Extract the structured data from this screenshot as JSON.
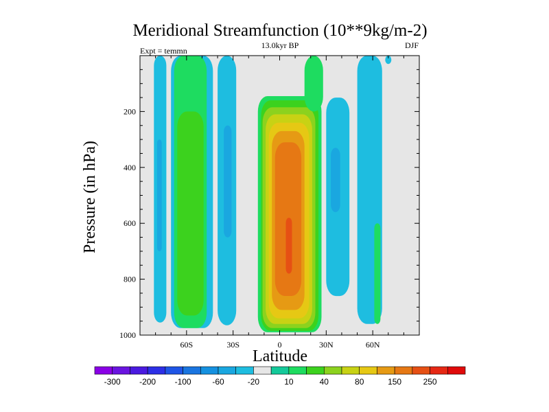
{
  "chart_data": {
    "type": "contour",
    "title": "Meridional Streamfunction (10**9kg/m-2)",
    "subtitle": "13.0kyr BP",
    "left_label": "Expt = temmn",
    "right_label": "DJF",
    "xlabel": "Latitude",
    "ylabel": "Pressure (in hPa)",
    "xlim": [
      -90,
      90
    ],
    "ylim": [
      1000,
      0
    ],
    "x_ticks": [
      {
        "value": -60,
        "label": "60S"
      },
      {
        "value": -30,
        "label": "30S"
      },
      {
        "value": 0,
        "label": "0"
      },
      {
        "value": 30,
        "label": "30N"
      },
      {
        "value": 60,
        "label": "60N"
      }
    ],
    "y_ticks": [
      {
        "value": 200,
        "label": "200"
      },
      {
        "value": 400,
        "label": "400"
      },
      {
        "value": 600,
        "label": "600"
      },
      {
        "value": 800,
        "label": "800"
      },
      {
        "value": 1000,
        "label": "1000"
      }
    ],
    "y_minor_ticks": [
      50,
      100,
      150,
      250,
      300,
      350,
      450,
      500,
      550,
      650,
      700,
      750,
      850,
      900,
      950
    ],
    "background_color": "#e6e6e6",
    "colorbar": {
      "colors": [
        "#8a00e6",
        "#6a14e0",
        "#4a1ae0",
        "#2c2fe6",
        "#1f55e6",
        "#1a75e0",
        "#1591e0",
        "#1aa7e0",
        "#1ebde0",
        "#e6e6e6",
        "#14c99a",
        "#1edc60",
        "#3cd21e",
        "#8cd21e",
        "#c8d214",
        "#e6c814",
        "#e69a14",
        "#e67814",
        "#e65014",
        "#e62814",
        "#e00a0a"
      ],
      "labels": [
        {
          "boundary": 1,
          "text": "-300"
        },
        {
          "boundary": 3,
          "text": "-200"
        },
        {
          "boundary": 5,
          "text": "-100"
        },
        {
          "boundary": 7,
          "text": "-60"
        },
        {
          "boundary": 9,
          "text": "-20"
        },
        {
          "boundary": 11,
          "text": "10"
        },
        {
          "boundary": 13,
          "text": "40"
        },
        {
          "boundary": 15,
          "text": "80"
        },
        {
          "boundary": 17,
          "text": "150"
        },
        {
          "boundary": 19,
          "text": "250"
        }
      ]
    },
    "regions": [
      {
        "name": "blue-cell-polar-south",
        "color_index": 8,
        "lat": [
          -81,
          -73
        ],
        "p_top": 0,
        "p_bottom": 955
      },
      {
        "name": "blue-cell-polar-south-deep",
        "color_index": 7,
        "lat": [
          -79,
          -76
        ],
        "p_top": 300,
        "p_bottom": 700
      },
      {
        "name": "blue-cell-midlat-south-outer",
        "color_index": 8,
        "lat": [
          -70,
          -43
        ],
        "p_top": 0,
        "p_bottom": 975
      },
      {
        "name": "green-band-midlat-south",
        "color_index": 11,
        "lat": [
          -68,
          -47
        ],
        "p_top": 0,
        "p_bottom": 975
      },
      {
        "name": "green-band-midlat-south-core",
        "color_index": 12,
        "lat": [
          -66,
          -49
        ],
        "p_top": 200,
        "p_bottom": 930
      },
      {
        "name": "blue-cell-subtropic-south",
        "color_index": 8,
        "lat": [
          -40,
          -28
        ],
        "p_top": 0,
        "p_bottom": 965
      },
      {
        "name": "blue-cell-subtropic-south-core",
        "color_index": 7,
        "lat": [
          -36,
          -31
        ],
        "p_top": 250,
        "p_bottom": 650
      },
      {
        "name": "hadley-green",
        "color_index": 11,
        "lat": [
          -14,
          27
        ],
        "p_top": 145,
        "p_bottom": 990
      },
      {
        "name": "hadley-lime",
        "color_index": 12,
        "lat": [
          -12,
          25
        ],
        "p_top": 160,
        "p_bottom": 985
      },
      {
        "name": "hadley-yellow-green",
        "color_index": 13,
        "lat": [
          -11,
          23
        ],
        "p_top": 185,
        "p_bottom": 975
      },
      {
        "name": "hadley-yellow",
        "color_index": 14,
        "lat": [
          -9,
          21
        ],
        "p_top": 210,
        "p_bottom": 960
      },
      {
        "name": "hadley-gold",
        "color_index": 15,
        "lat": [
          -7,
          19
        ],
        "p_top": 240,
        "p_bottom": 940
      },
      {
        "name": "hadley-orange",
        "color_index": 16,
        "lat": [
          -5,
          16
        ],
        "p_top": 270,
        "p_bottom": 910
      },
      {
        "name": "hadley-dark-orange",
        "color_index": 17,
        "lat": [
          -3,
          14
        ],
        "p_top": 310,
        "p_bottom": 860
      },
      {
        "name": "hadley-red-orange-core",
        "color_index": 18,
        "lat": [
          4,
          8
        ],
        "p_top": 580,
        "p_bottom": 780
      },
      {
        "name": "green-cap-equatorial",
        "color_index": 11,
        "lat": [
          16,
          28
        ],
        "p_top": 0,
        "p_bottom": 200
      },
      {
        "name": "blue-cell-subtropic-north",
        "color_index": 8,
        "lat": [
          30,
          45
        ],
        "p_top": 150,
        "p_bottom": 860
      },
      {
        "name": "blue-cell-subtropic-north-core",
        "color_index": 7,
        "lat": [
          33,
          39
        ],
        "p_top": 330,
        "p_bottom": 560
      },
      {
        "name": "blue-cell-midlat-north",
        "color_index": 8,
        "lat": [
          50,
          66
        ],
        "p_top": 0,
        "p_bottom": 960
      },
      {
        "name": "green-strip-midlat-north",
        "color_index": 11,
        "lat": [
          61,
          65
        ],
        "p_top": 600,
        "p_bottom": 960
      },
      {
        "name": "blue-cell-top-north",
        "color_index": 8,
        "lat": [
          68,
          72
        ],
        "p_top": 0,
        "p_bottom": 30
      }
    ]
  }
}
